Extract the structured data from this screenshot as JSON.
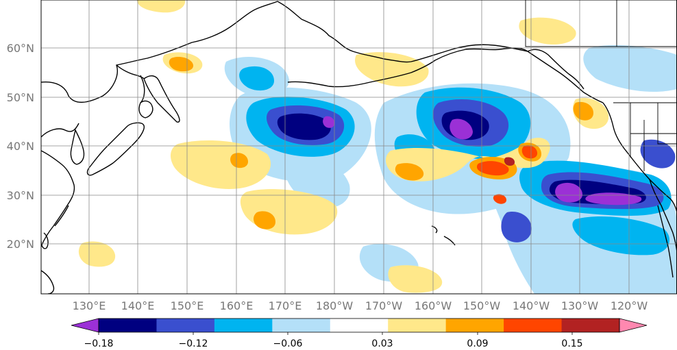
{
  "map": {
    "lat_labels": [
      "60°N",
      "50°N",
      "40°N",
      "30°N",
      "20°N"
    ],
    "lon_labels": [
      "130°E",
      "140°E",
      "150°E",
      "160°E",
      "170°E",
      "180°W",
      "170°W",
      "160°W",
      "150°W",
      "140°W",
      "130°W",
      "120°W"
    ]
  },
  "colorbar": {
    "colors": [
      "#9b30d6",
      "#000080",
      "#3a4fcf",
      "#00b4f0",
      "#b4e0f8",
      "#ffffff",
      "#ffe88a",
      "#ffa500",
      "#ff4500",
      "#b22222",
      "#ff88b0"
    ],
    "ticks": [
      "−0.18",
      "−0.12",
      "−0.06",
      "0.03",
      "0.09",
      "0.15"
    ],
    "extend": "both"
  }
}
